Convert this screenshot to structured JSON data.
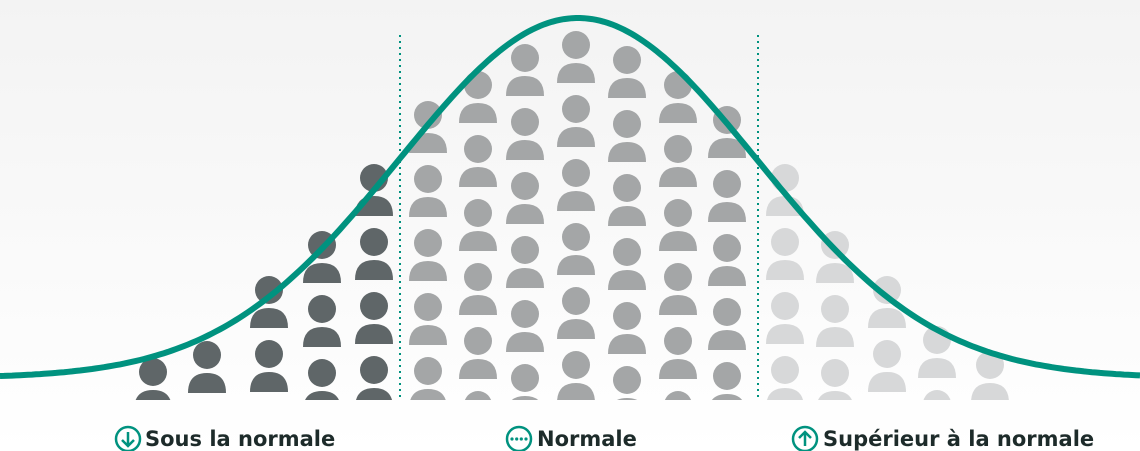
{
  "labels": {
    "below": "Sous la normale",
    "normal": "Normale",
    "above": "Supérieur à la normale"
  }
}
